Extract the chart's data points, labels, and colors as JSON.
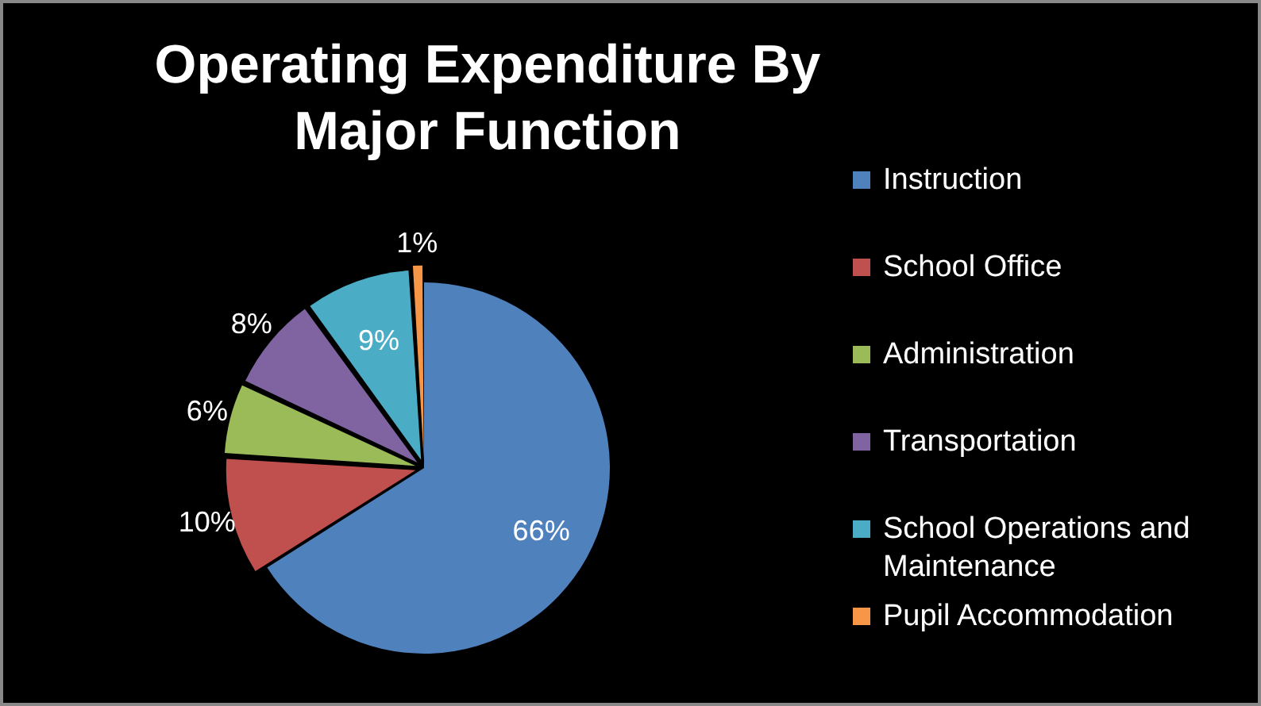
{
  "chart_data": {
    "type": "pie",
    "title": "Operating Expenditure By Major Function",
    "categories": [
      "Instruction",
      "School Office",
      "Administration",
      "Transportation",
      "School Operations and Maintenance",
      "Pupil Accommodation"
    ],
    "values": [
      66,
      10,
      6,
      8,
      9,
      1
    ],
    "colors": [
      "#4f81bd",
      "#c0504d",
      "#9bbb59",
      "#8064a2",
      "#4bacc6",
      "#f79646"
    ],
    "value_labels": [
      "66%",
      "10%",
      "6%",
      "8%",
      "9%",
      "1%"
    ],
    "legend": "right"
  }
}
